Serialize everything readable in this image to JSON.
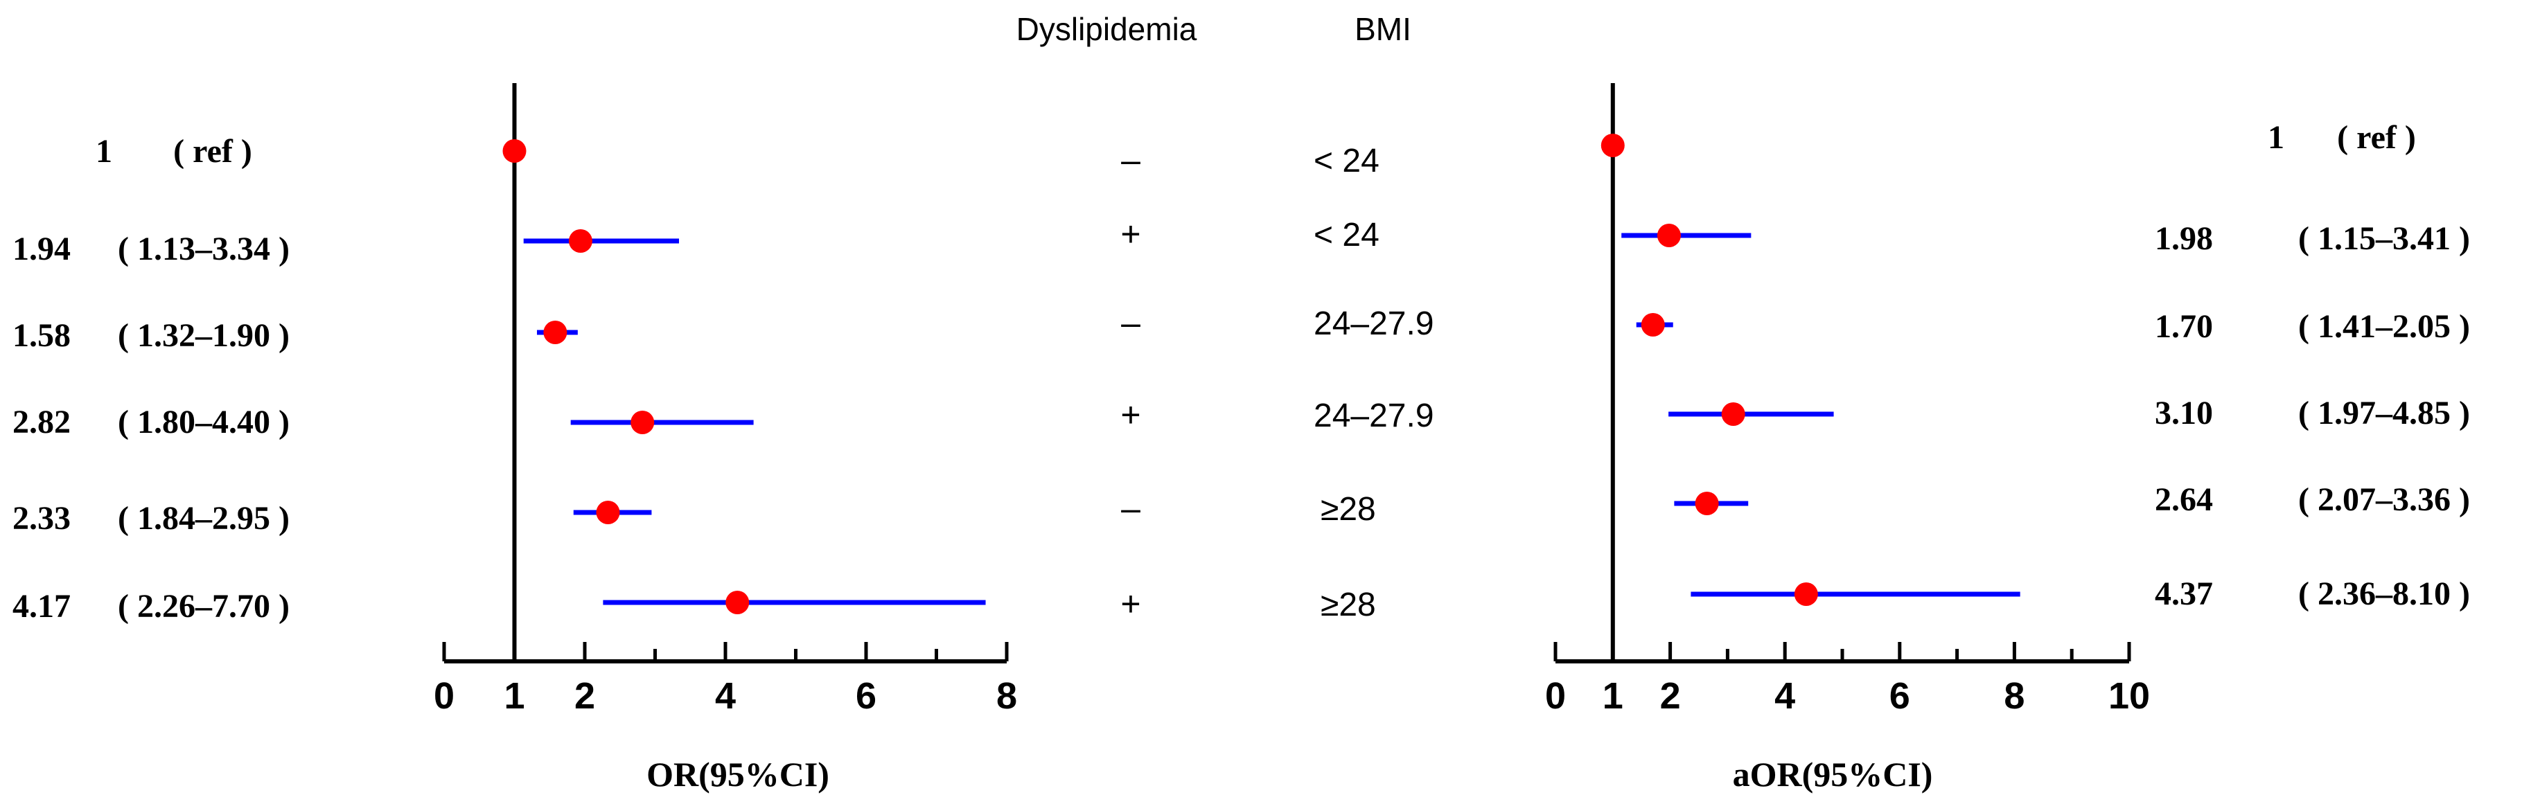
{
  "header": {
    "col_dyslipidemia": "Dyslipidemia",
    "col_bmi": "BMI"
  },
  "rows": [
    {
      "dyslipidemia": "–",
      "bmi": "< 24",
      "or_text": "1",
      "or_ci": "( ref )",
      "aor_text": "1",
      "aor_ci": "( ref )"
    },
    {
      "dyslipidemia": "+",
      "bmi": "< 24",
      "or_text": "1.94",
      "or_ci": "( 1.13–3.34 )",
      "aor_text": "1.98",
      "aor_ci": "( 1.15–3.41 )"
    },
    {
      "dyslipidemia": "–",
      "bmi": "24–27.9",
      "or_text": "1.58",
      "or_ci": "( 1.32–1.90 )",
      "aor_text": "1.70",
      "aor_ci": "( 1.41–2.05 )"
    },
    {
      "dyslipidemia": "+",
      "bmi": "24–27.9",
      "or_text": "2.82",
      "or_ci": "( 1.80–4.40 )",
      "aor_text": "3.10",
      "aor_ci": "( 1.97–4.85 )"
    },
    {
      "dyslipidemia": "–",
      "bmi": "≥28",
      "or_text": "2.33",
      "or_ci": "( 1.84–2.95 )",
      "aor_text": "2.64",
      "aor_ci": "( 2.07–3.36 )"
    },
    {
      "dyslipidemia": "+",
      "bmi": "≥28",
      "or_text": "4.17",
      "or_ci": "( 2.26–7.70 )",
      "aor_text": "4.37",
      "aor_ci": "( 2.36–8.10 )"
    }
  ],
  "colors": {
    "point": "#ff0000",
    "ci": "#0000ff",
    "axis": "#000000"
  },
  "chart_data": [
    {
      "type": "forest",
      "xlabel": "OR(95%CI)",
      "xlim": [
        0,
        8
      ],
      "xticks": [
        0,
        1,
        2,
        4,
        6,
        8
      ],
      "reference_line": 1,
      "series": [
        {
          "name": "OR",
          "points": [
            {
              "est": 1.0,
              "lo": 1.0,
              "hi": 1.0
            },
            {
              "est": 1.94,
              "lo": 1.13,
              "hi": 3.34
            },
            {
              "est": 1.58,
              "lo": 1.32,
              "hi": 1.9
            },
            {
              "est": 2.82,
              "lo": 1.8,
              "hi": 4.4
            },
            {
              "est": 2.33,
              "lo": 1.84,
              "hi": 2.95
            },
            {
              "est": 4.17,
              "lo": 2.26,
              "hi": 7.7
            }
          ]
        }
      ]
    },
    {
      "type": "forest",
      "xlabel": "aOR(95%CI)",
      "xlim": [
        0,
        10
      ],
      "xticks": [
        0,
        1,
        2,
        4,
        6,
        8,
        10
      ],
      "reference_line": 1,
      "series": [
        {
          "name": "aOR",
          "points": [
            {
              "est": 1.0,
              "lo": 1.0,
              "hi": 1.0
            },
            {
              "est": 1.98,
              "lo": 1.15,
              "hi": 3.41
            },
            {
              "est": 1.7,
              "lo": 1.41,
              "hi": 2.05
            },
            {
              "est": 3.1,
              "lo": 1.97,
              "hi": 4.85
            },
            {
              "est": 2.64,
              "lo": 2.07,
              "hi": 3.36
            },
            {
              "est": 4.37,
              "lo": 2.36,
              "hi": 8.1
            }
          ]
        }
      ]
    }
  ]
}
